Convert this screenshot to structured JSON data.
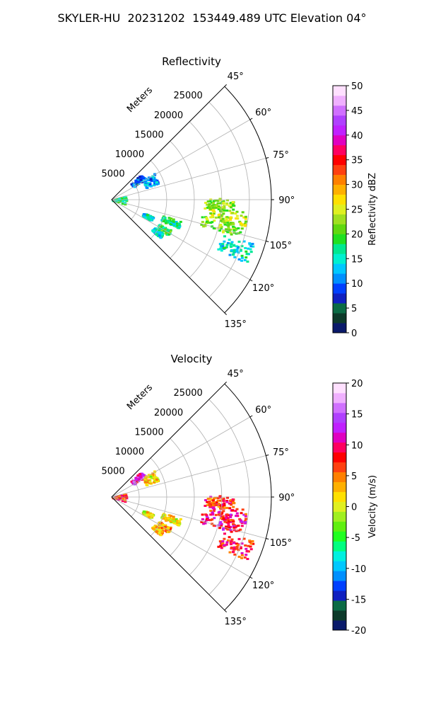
{
  "title": "SKYLER-HU  20231202  153449.489 UTC Elevation 04°",
  "range_label": "Meters",
  "range_ticks": [
    "5000",
    "10000",
    "15000",
    "20000",
    "25000"
  ],
  "range_values": [
    5000,
    10000,
    15000,
    20000,
    25000
  ],
  "range_max": 29000,
  "azimuth_ticks": [
    "45°",
    "60°",
    "75°",
    "90°",
    "105°",
    "120°",
    "135°"
  ],
  "azimuth_values": [
    45,
    60,
    75,
    90,
    105,
    120,
    135
  ],
  "panels": [
    {
      "name": "reflectivity",
      "title": "Reflectivity",
      "colorbar_label": "Reflectivity dBZ",
      "colorbar_ticks": [
        "0",
        "5",
        "10",
        "15",
        "20",
        "25",
        "30",
        "35",
        "40",
        "45",
        "50"
      ],
      "colorbar_range": [
        0,
        50
      ],
      "colorbar_colors": [
        "#0a1a6a",
        "#0d3a2a",
        "#0b6b45",
        "#1020c0",
        "#0040ff",
        "#0090ff",
        "#00c8ff",
        "#00f0d0",
        "#00e890",
        "#20e020",
        "#60d810",
        "#a0e020",
        "#e0f020",
        "#ffe000",
        "#ffb000",
        "#ff8000",
        "#ff4010",
        "#ff0000",
        "#ff0060",
        "#e000c0",
        "#c020ff",
        "#b040ff",
        "#d070ff",
        "#f0b0ff",
        "#ffe0ff"
      ]
    },
    {
      "name": "velocity",
      "title": "Velocity",
      "colorbar_label": "Velocity (m/s)",
      "colorbar_ticks": [
        "-20",
        "-15",
        "-10",
        "-5",
        "0",
        "5",
        "10",
        "15",
        "20"
      ],
      "colorbar_range": [
        -20,
        20
      ],
      "colorbar_colors": [
        "#0a1a6a",
        "#0d3a2a",
        "#0b6b45",
        "#1020c0",
        "#0040ff",
        "#0090ff",
        "#00c8ff",
        "#00f0e0",
        "#00ff80",
        "#20ff20",
        "#60f010",
        "#a0f020",
        "#e0f020",
        "#ffe000",
        "#ffb000",
        "#ff8000",
        "#ff4010",
        "#ff0000",
        "#ff0060",
        "#e000c0",
        "#c020ff",
        "#b040ff",
        "#d070ff",
        "#f0b0ff",
        "#ffe0ff"
      ]
    }
  ],
  "chart_data": [
    {
      "type": "heatmap",
      "projection": "polar-sector",
      "title": "Reflectivity",
      "azimuth_range_deg": [
        45,
        135
      ],
      "range_max_m": 29000,
      "colorbar": {
        "label": "Reflectivity dBZ",
        "range": [
          0,
          50
        ]
      },
      "echo_regions": [
        {
          "azimuth_deg": [
            70,
            108
          ],
          "range_m": [
            0,
            2500
          ],
          "value": 18
        },
        {
          "azimuth_deg": [
            48,
            58
          ],
          "range_m": [
            4500,
            7200
          ],
          "value": 9
        },
        {
          "azimuth_deg": [
            57,
            70
          ],
          "range_m": [
            6500,
            9000
          ],
          "value": 11
        },
        {
          "azimuth_deg": [
            100,
            106
          ],
          "range_m": [
            16500,
            24000
          ],
          "value": 22
        },
        {
          "azimuth_deg": [
            95,
            101
          ],
          "range_m": [
            17000,
            24500
          ],
          "value": 24
        },
        {
          "azimuth_deg": [
            89,
            95
          ],
          "range_m": [
            16500,
            22000
          ],
          "value": 22
        },
        {
          "azimuth_deg": [
            107,
            113
          ],
          "range_m": [
            9500,
            13000
          ],
          "value": 17
        },
        {
          "azimuth_deg": [
            117,
            122
          ],
          "range_m": [
            9500,
            12000
          ],
          "value": 19
        },
        {
          "azimuth_deg": [
            123,
            128
          ],
          "range_m": [
            9000,
            11000
          ],
          "value": 15
        },
        {
          "azimuth_deg": [
            112,
            118
          ],
          "range_m": [
            6000,
            8000
          ],
          "value": 15
        },
        {
          "azimuth_deg": [
            107,
            115
          ],
          "range_m": [
            21000,
            27000
          ],
          "value": 15
        }
      ]
    },
    {
      "type": "heatmap",
      "projection": "polar-sector",
      "title": "Velocity",
      "azimuth_range_deg": [
        45,
        135
      ],
      "range_max_m": 29000,
      "colorbar": {
        "label": "Velocity (m/s)",
        "range": [
          -20,
          20
        ]
      },
      "echo_regions": [
        {
          "azimuth_deg": [
            70,
            108
          ],
          "range_m": [
            0,
            2500
          ],
          "value": 8
        },
        {
          "azimuth_deg": [
            48,
            58
          ],
          "range_m": [
            4500,
            7200
          ],
          "value": 12
        },
        {
          "azimuth_deg": [
            57,
            70
          ],
          "range_m": [
            6500,
            9000
          ],
          "value": 1
        },
        {
          "azimuth_deg": [
            100,
            106
          ],
          "range_m": [
            16500,
            24000
          ],
          "value": 10
        },
        {
          "azimuth_deg": [
            95,
            101
          ],
          "range_m": [
            17000,
            24500
          ],
          "value": 9
        },
        {
          "azimuth_deg": [
            89,
            95
          ],
          "range_m": [
            16500,
            22000
          ],
          "value": 7
        },
        {
          "azimuth_deg": [
            107,
            113
          ],
          "range_m": [
            9500,
            13000
          ],
          "value": 1
        },
        {
          "azimuth_deg": [
            117,
            122
          ],
          "range_m": [
            9500,
            12000
          ],
          "value": 4
        },
        {
          "azimuth_deg": [
            123,
            128
          ],
          "range_m": [
            9000,
            11000
          ],
          "value": 3
        },
        {
          "azimuth_deg": [
            112,
            118
          ],
          "range_m": [
            6000,
            8000
          ],
          "value": 1
        },
        {
          "azimuth_deg": [
            107,
            115
          ],
          "range_m": [
            21000,
            27000
          ],
          "value": 8
        }
      ]
    }
  ]
}
